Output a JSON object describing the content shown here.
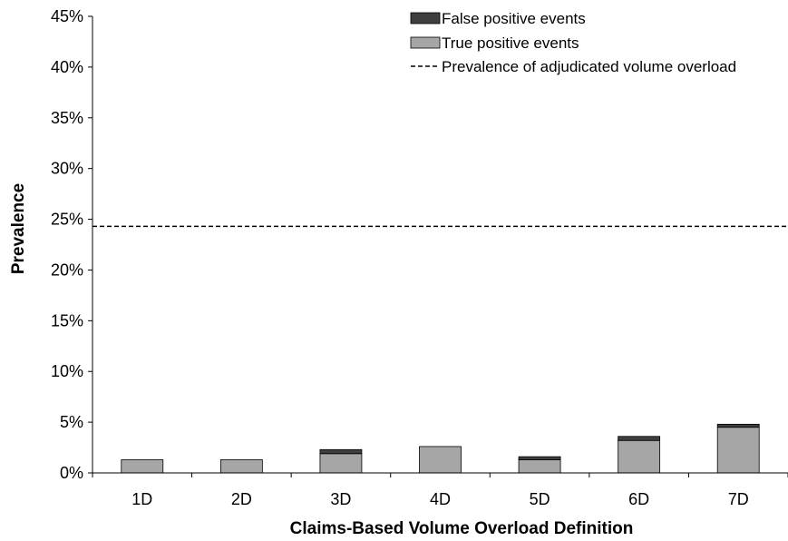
{
  "chart_data": {
    "type": "bar",
    "stacked": true,
    "categories": [
      "1D",
      "2D",
      "3D",
      "4D",
      "5D",
      "6D",
      "7D"
    ],
    "series": [
      {
        "name": "True positive events",
        "values": [
          1.3,
          1.3,
          1.9,
          2.6,
          1.3,
          3.2,
          4.5
        ],
        "color": "#a6a6a6"
      },
      {
        "name": "False positive events",
        "values": [
          0.0,
          0.0,
          0.4,
          0.0,
          0.3,
          0.4,
          0.3
        ],
        "color": "#3f3f3f"
      }
    ],
    "reference_line": {
      "name": "Prevalence of adjudicated volume overload",
      "value": 24.3,
      "style": "dashed"
    },
    "ylim": [
      0,
      45
    ],
    "yticks": [
      0,
      5,
      10,
      15,
      20,
      25,
      30,
      35,
      40,
      45
    ],
    "ytick_labels": [
      "0%",
      "5%",
      "10%",
      "15%",
      "20%",
      "25%",
      "30%",
      "35%",
      "40%",
      "45%"
    ],
    "xlabel": "Claims-Based Volume Overload Definition",
    "ylabel": "Prevalence",
    "legend": {
      "placement": "top-right",
      "entries": [
        "False positive events",
        "True positive events",
        "Prevalence of adjudicated volume overload"
      ]
    },
    "grid": false
  }
}
